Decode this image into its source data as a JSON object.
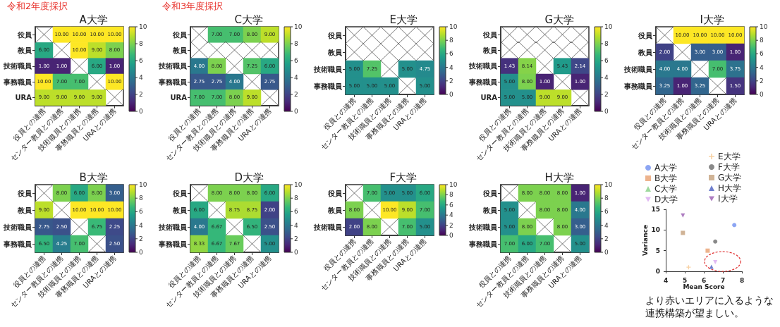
{
  "chart_data": [
    {
      "type": "heatmap",
      "title": "A大学",
      "annotations": [
        "令和2年度採択"
      ],
      "categories": [
        "役員との連携",
        "センター教員との連携",
        "技術職員との連携",
        "事務職員との連携",
        "URAとの連携"
      ],
      "y_categories": [
        "役員",
        "教員",
        "技術職員",
        "事務職員",
        "URA"
      ],
      "cells": [
        [
          null,
          10,
          10,
          10,
          10
        ],
        [
          6,
          null,
          10,
          9,
          8
        ],
        [
          1,
          1,
          null,
          6,
          1
        ],
        [
          10,
          7,
          7,
          null,
          10
        ],
        [
          9,
          9,
          9,
          9,
          null
        ]
      ],
      "cell_labels": [
        [
          null,
          "10.00",
          "10.00",
          "10.00",
          "10.00"
        ],
        [
          "6.00",
          null,
          "10.00",
          "9.00",
          "8.00"
        ],
        [
          "1.00",
          "1.00",
          null,
          "6.00",
          "1.00"
        ],
        [
          "10.00",
          "7.00",
          "7.00",
          null,
          "10.00"
        ],
        [
          "9.00",
          "9.00",
          "9.00",
          "9.00",
          null
        ]
      ],
      "clim": [
        0,
        10
      ],
      "cticks": [
        0,
        2,
        4,
        6,
        8,
        10
      ],
      "data_labels": true
    },
    {
      "type": "heatmap",
      "title": "C大学",
      "annotations": [
        "令和3年度採択"
      ],
      "categories": [
        "役員との連携",
        "センター教員との連携",
        "技術職員との連携",
        "事務職員との連携",
        "URAとの連携"
      ],
      "y_categories": [
        "役員",
        "教員",
        "技術職員",
        "事務職員",
        "URA"
      ],
      "cells": [
        [
          null,
          7,
          7,
          8,
          9
        ],
        [
          null,
          null,
          null,
          null,
          null
        ],
        [
          4,
          8,
          null,
          7.25,
          6
        ],
        [
          2.75,
          2.75,
          4,
          null,
          2.75
        ],
        [
          7,
          7,
          8,
          9,
          null
        ]
      ],
      "cell_labels": [
        [
          null,
          "7.00",
          "7.00",
          "8.00",
          "9.00"
        ],
        [
          null,
          null,
          null,
          null,
          null
        ],
        [
          "4.00",
          "8.00",
          null,
          "7.25",
          "6.00"
        ],
        [
          "2.75",
          "2.75",
          "4.00",
          null,
          "2.75"
        ],
        [
          "7.00",
          "7.00",
          "8.00",
          "9.00",
          null
        ]
      ],
      "clim": [
        0,
        10
      ],
      "cticks": [
        0,
        2,
        4,
        6,
        8,
        10
      ],
      "data_labels": true
    },
    {
      "type": "heatmap",
      "title": "E大学",
      "categories": [
        "役員との連携",
        "センター教員との連携",
        "技術職員との連携",
        "事務職員との連携",
        "URAとの連携"
      ],
      "y_categories": [
        "役員",
        "教員",
        "技術職員",
        "事務職員"
      ],
      "cells": [
        [
          null,
          null,
          null,
          null,
          null
        ],
        [
          null,
          null,
          null,
          null,
          null
        ],
        [
          5,
          7.25,
          null,
          5,
          4.75
        ],
        [
          5,
          5,
          5,
          null,
          5
        ]
      ],
      "cell_labels": [
        [
          null,
          null,
          null,
          null,
          null
        ],
        [
          null,
          null,
          null,
          null,
          null
        ],
        [
          "5.00",
          "7.25",
          null,
          "5.00",
          "4.75"
        ],
        [
          "5.00",
          "5.00",
          "5.00",
          null,
          "5.00"
        ]
      ],
      "clim": [
        0,
        10
      ],
      "cticks": [
        0,
        2,
        4,
        6,
        8,
        10
      ],
      "data_labels": true
    },
    {
      "type": "heatmap",
      "title": "G大学",
      "categories": [
        "役員との連携",
        "センター教員との連携",
        "技術職員との連携",
        "事務職員との連携",
        "URAとの連携"
      ],
      "y_categories": [
        "役員",
        "教員",
        "技術職員",
        "事務職員",
        "URA"
      ],
      "cells": [
        [
          null,
          null,
          null,
          null,
          null
        ],
        [
          null,
          null,
          null,
          null,
          null
        ],
        [
          1.43,
          8.14,
          null,
          5.43,
          2.14
        ],
        [
          5,
          8,
          1,
          null,
          1
        ],
        [
          5,
          5,
          9,
          9,
          null
        ]
      ],
      "cell_labels": [
        [
          null,
          null,
          null,
          null,
          null
        ],
        [
          null,
          null,
          null,
          null,
          null
        ],
        [
          "1.43",
          "8.14",
          null,
          "5.43",
          "2.14"
        ],
        [
          "5.00",
          "8.00",
          "1.00",
          null,
          "1.00"
        ],
        [
          "5.00",
          "5.00",
          "9.00",
          "9.00",
          null
        ]
      ],
      "clim": [
        0,
        10
      ],
      "cticks": [
        0,
        2,
        4,
        6,
        8,
        10
      ],
      "data_labels": true
    },
    {
      "type": "heatmap",
      "title": "I大学",
      "categories": [
        "役員との連携",
        "センター教員との連携",
        "技術職員との連携",
        "事務職員との連携",
        "URAとの連携"
      ],
      "y_categories": [
        "役員",
        "教員",
        "技術職員",
        "事務職員"
      ],
      "cells": [
        [
          null,
          10,
          10,
          10,
          10
        ],
        [
          2,
          null,
          3,
          3,
          1
        ],
        [
          4,
          4,
          null,
          7,
          3.75
        ],
        [
          3.25,
          1,
          3.25,
          null,
          1.5
        ]
      ],
      "cell_labels": [
        [
          null,
          "10.00",
          "10.00",
          "10.00",
          "10.00"
        ],
        [
          "2.00",
          null,
          "3.00",
          "3.00",
          "1.00"
        ],
        [
          "4.00",
          "4.00",
          null,
          "7.00",
          "3.75"
        ],
        [
          "3.25",
          "1.00",
          "3.25",
          null,
          "1.50"
        ]
      ],
      "clim": [
        0,
        10
      ],
      "cticks": [
        0,
        2,
        4,
        6,
        8,
        10
      ],
      "data_labels": true
    },
    {
      "type": "heatmap",
      "title": "B大学",
      "categories": [
        "役員との連携",
        "センター教員との連携",
        "技術職員との連携",
        "事務職員との連携",
        "URAとの連携"
      ],
      "y_categories": [
        "役員",
        "教員",
        "技術職員",
        "事務職員"
      ],
      "cells": [
        [
          null,
          8,
          6,
          8,
          3
        ],
        [
          9,
          null,
          10,
          10,
          10
        ],
        [
          2.75,
          2.5,
          null,
          6.75,
          2.25
        ],
        [
          6.5,
          4.25,
          7,
          null,
          2.5
        ]
      ],
      "cell_labels": [
        [
          null,
          "8.00",
          "6.00",
          "8.00",
          "3.00"
        ],
        [
          "9.00",
          null,
          "10.00",
          "10.00",
          "10.00"
        ],
        [
          "2.75",
          "2.50",
          null,
          "6.75",
          "2.25"
        ],
        [
          "6.50",
          "4.25",
          "7.00",
          null,
          "2.50"
        ]
      ],
      "clim": [
        0,
        10
      ],
      "cticks": [
        0,
        2,
        4,
        6,
        8,
        10
      ],
      "data_labels": true
    },
    {
      "type": "heatmap",
      "title": "D大学",
      "categories": [
        "役員との連携",
        "センター教員との連携",
        "技術職員との連携",
        "事務職員との連携",
        "URAとの連携"
      ],
      "y_categories": [
        "役員",
        "教員",
        "技術職員",
        "事務職員"
      ],
      "cells": [
        [
          null,
          8,
          8,
          8,
          6
        ],
        [
          6,
          null,
          8.75,
          8.75,
          2
        ],
        [
          4,
          6.67,
          null,
          6.5,
          2.5
        ],
        [
          8.33,
          6.67,
          7.67,
          null,
          5
        ]
      ],
      "cell_labels": [
        [
          null,
          "8.00",
          "8.00",
          "8.00",
          "6.00"
        ],
        [
          "6.00",
          null,
          "8.75",
          "8.75",
          "2.00"
        ],
        [
          "4.00",
          "6.67",
          null,
          "6.50",
          "2.50"
        ],
        [
          "8.33",
          "6.67",
          "7.67",
          null,
          "5.00"
        ]
      ],
      "clim": [
        0,
        10
      ],
      "cticks": [
        0,
        2,
        4,
        6,
        8,
        10
      ],
      "data_labels": true
    },
    {
      "type": "heatmap",
      "title": "F大学",
      "categories": [
        "役員との連携",
        "センター教員との連携",
        "技術職員との連携",
        "事務職員との連携",
        "URAとの連携"
      ],
      "y_categories": [
        "役員",
        "教員",
        "技術職員"
      ],
      "cells": [
        [
          null,
          7,
          5,
          5,
          6
        ],
        [
          8,
          null,
          10,
          9,
          7
        ],
        [
          2,
          8,
          null,
          7,
          5
        ]
      ],
      "cell_labels": [
        [
          null,
          "7.00",
          "5.00",
          "5.00",
          "6.00"
        ],
        [
          "8.00",
          null,
          "10.00",
          "9.00",
          "7.00"
        ],
        [
          "2.00",
          "8.00",
          null,
          "7.00",
          "5.00"
        ]
      ],
      "clim": [
        0,
        10
      ],
      "cticks": [
        0,
        2,
        4,
        6,
        8,
        10
      ],
      "data_labels": true
    },
    {
      "type": "heatmap",
      "title": "H大学",
      "categories": [
        "役員との連携",
        "センター教員との連携",
        "技術職員との連携",
        "事務職員との連携",
        "URAとの連携"
      ],
      "y_categories": [
        "役員",
        "教員",
        "技術職員",
        "事務職員"
      ],
      "cells": [
        [
          null,
          8,
          8,
          8,
          1
        ],
        [
          5,
          null,
          8,
          8,
          4
        ],
        [
          5,
          8,
          null,
          8,
          3
        ],
        [
          7,
          6,
          7,
          null,
          5
        ]
      ],
      "cell_labels": [
        [
          null,
          "8.00",
          "8.00",
          "8.00",
          "1.00"
        ],
        [
          "5.00",
          null,
          "8.00",
          "8.00",
          "4.00"
        ],
        [
          "5.00",
          "8.00",
          null,
          "8.00",
          "3.00"
        ],
        [
          "7.00",
          "6.00",
          "7.00",
          null,
          "5.00"
        ]
      ],
      "clim": [
        0,
        10
      ],
      "cticks": [
        0,
        2,
        4,
        6,
        8,
        10
      ],
      "data_labels": true
    },
    {
      "type": "scatter",
      "xlabel": "Mean Score",
      "ylabel": "Variance",
      "xlim": [
        4,
        8
      ],
      "xticks": [
        4,
        5,
        6,
        7,
        8
      ],
      "ylim": [
        0,
        15
      ],
      "yticks": [
        0,
        5,
        10,
        15
      ],
      "legend": "top",
      "annotations": [
        "より赤いエリアに入るような連携構築が望ましい。"
      ],
      "series": [
        {
          "name": "A大学",
          "color": "#6f8ff0",
          "marker": "circle",
          "x": [
            7.6
          ],
          "values": [
            11.2
          ]
        },
        {
          "name": "B大学",
          "color": "#e8a070",
          "marker": "square",
          "x": [
            6.2
          ],
          "values": [
            5.0
          ]
        },
        {
          "name": "C大学",
          "color": "#86cf86",
          "marker": "triangle",
          "x": [
            null
          ],
          "values": [
            null
          ]
        },
        {
          "name": "D大学",
          "color": "#d9a8f0",
          "marker": "triangle-down",
          "x": [
            6.6
          ],
          "values": [
            2.2
          ]
        },
        {
          "name": "E大学",
          "color": "#f6c68c",
          "marker": "cross",
          "x": [
            5.2
          ],
          "values": [
            1.0
          ]
        },
        {
          "name": "F大学",
          "color": "#6b6b6b",
          "marker": "circle",
          "x": [
            6.6
          ],
          "values": [
            7.2
          ]
        },
        {
          "name": "G大学",
          "color": "#c4a07c",
          "marker": "square",
          "x": [
            4.9
          ],
          "values": [
            9.3
          ]
        },
        {
          "name": "H大学",
          "color": "#4b5fc2",
          "marker": "triangle",
          "x": [
            6.4
          ],
          "values": [
            1.1
          ]
        },
        {
          "name": "I大学",
          "color": "#9a5db2",
          "marker": "triangle-down",
          "x": [
            4.9
          ],
          "values": [
            13.5
          ]
        }
      ]
    }
  ]
}
